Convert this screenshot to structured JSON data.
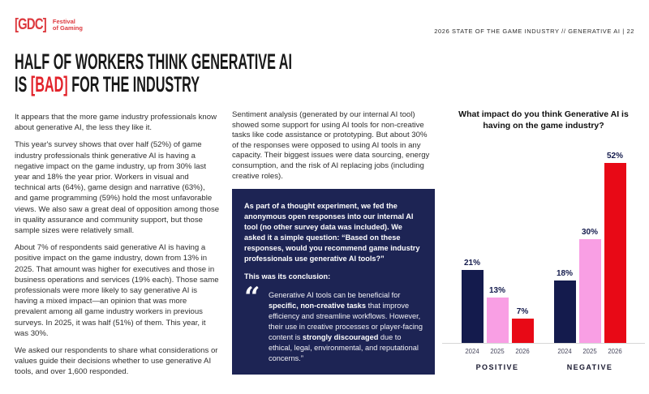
{
  "header": {
    "logo": {
      "bracket_text": "[GDC]",
      "sub_line1": "Festival",
      "sub_line2": "of Gaming"
    },
    "right_text": "2026 STATE OF THE GAME INDUSTRY  //  GENERATIVE AI  |  22"
  },
  "title": {
    "line1": "HALF OF WORKERS THINK GENERATIVE AI",
    "line2_pre": "IS ",
    "line2_bad": "[BAD]",
    "line2_post": " FOR THE INDUSTRY"
  },
  "left_column": {
    "paragraphs": [
      "It appears that the more game industry professionals know about generative AI, the less they like it.",
      "This year's survey shows that over half (52%) of game industry professionals think generative AI is having a negative impact on the game industry, up from 30% last year and 18% the year prior. Workers in visual and technical arts (64%), game design and narrative (63%), and game programming (59%) hold the most unfavorable views. We also saw a great deal of opposition among those in quality assurance and community support, but those sample sizes were relatively small.",
      "About 7% of respondents said generative AI is having a positive impact on the game industry, down from 13% in 2025. That amount was higher for executives and those in business operations and services (19% each). Those same professionals were more likely to say generative AI is having a mixed impact—an opinion that was more prevalent among all game industry workers in previous surveys. In 2025, it was half (51%) of them. This year, it was 30%.",
      "We asked our respondents to share what considerations or values guide their decisions whether to use generative AI tools, and over 1,600 responded."
    ]
  },
  "middle_column": {
    "intro": "Sentiment analysis (generated by our internal AI tool) showed some support for using AI tools for non-creative tasks like code assistance or prototyping. But about 30% of the responses were opposed to using AI tools in any capacity. Their biggest issues were data sourcing, energy consumption, and the risk of AI replacing jobs (including creative roles).",
    "panel": {
      "paragraph": "As part of a thought experiment, we fed the anonymous open responses into our internal AI tool (no other survey data was included). We asked it a simple question: “Based on these responses, would you recommend game industry professionals use generative AI tools?”",
      "conclusion_label": "This was its conclusion:",
      "quote_icon": "“",
      "quote_segments": [
        {
          "text": "Generative AI tools can be beneficial for ",
          "bold": false
        },
        {
          "text": "specific, non-creative tasks",
          "bold": true
        },
        {
          "text": " that improve efficiency and streamline workflows. However, their use in creative processes or player-facing content is ",
          "bold": false
        },
        {
          "text": "strongly discouraged",
          "bold": true
        },
        {
          "text": " due to ethical, legal, environmental, and reputational concerns.”",
          "bold": false
        }
      ]
    }
  },
  "chart_data": {
    "type": "bar",
    "title": "What impact do you think Generative AI is having on the game industry?",
    "groups": [
      {
        "label": "POSITIVE",
        "categories": [
          "2024",
          "2025",
          "2026"
        ],
        "values": [
          21,
          13,
          7
        ]
      },
      {
        "label": "NEGATIVE",
        "categories": [
          "2024",
          "2025",
          "2026"
        ],
        "values": [
          18,
          30,
          52
        ]
      }
    ],
    "series_colors": [
      "#141b4d",
      "#f99fe4",
      "#e80916"
    ],
    "value_suffix": "%",
    "ylim": [
      0,
      55
    ],
    "grid": false,
    "legend": "none",
    "axis_line_color": "#d6d6d6"
  },
  "colors": {
    "brand_red": "#dd3a3f",
    "title_accent_red": "#e2232b",
    "panel_navy": "#1d2454",
    "bar_navy": "#141b4d",
    "bar_pink": "#f99fe4",
    "bar_red": "#e80916",
    "background": "#ffffff"
  }
}
